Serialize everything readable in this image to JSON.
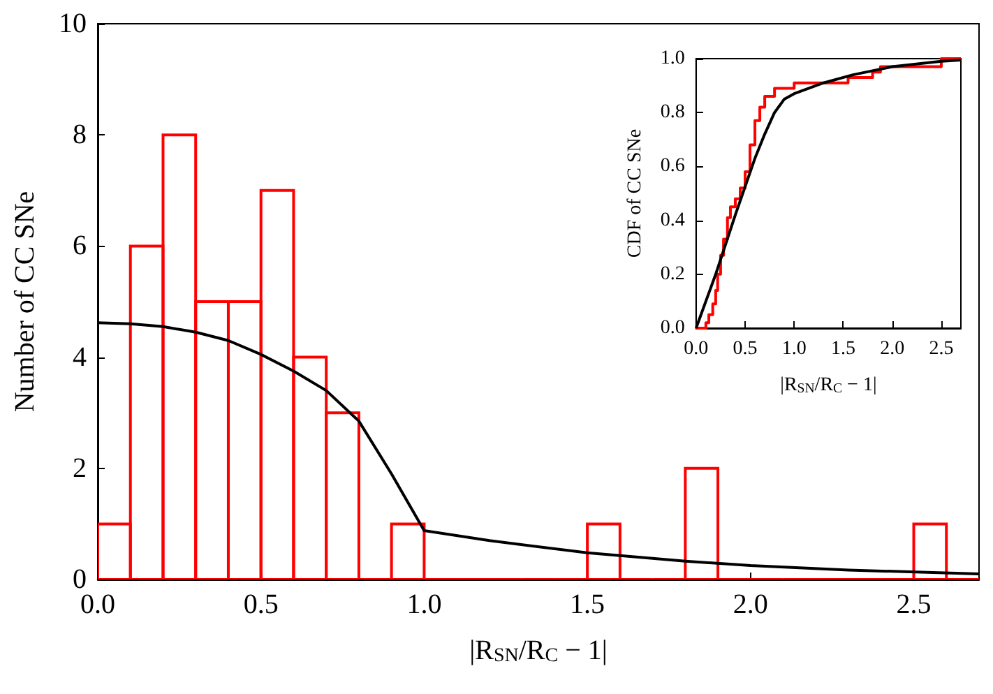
{
  "chart_data": [
    {
      "type": "histogram",
      "xlabel": "|R$_{SN}$/R$_{C}$ − 1|",
      "ylabel": "Number of CC SNe",
      "xlim": [
        0,
        2.7
      ],
      "ylim": [
        0,
        10
      ],
      "xticks": [
        {
          "value": 0,
          "label": "0.0"
        },
        {
          "value": 0.5,
          "label": "0.5"
        },
        {
          "value": 1,
          "label": "1.0"
        },
        {
          "value": 1.5,
          "label": "1.5"
        },
        {
          "value": 2,
          "label": "2.0"
        },
        {
          "value": 2.5,
          "label": "2.5"
        }
      ],
      "yticks": [
        0,
        2,
        4,
        6,
        8,
        10
      ],
      "grid": false,
      "series": [
        {
          "color": "#ff0000",
          "bins": [
            0,
            0.1,
            0.2,
            0.3,
            0.4,
            0.5,
            0.6,
            0.7,
            0.8,
            0.9,
            1.0,
            1.1,
            1.2,
            1.3,
            1.4,
            1.5,
            1.6,
            1.7,
            1.8,
            1.9,
            2.0,
            2.1,
            2.2,
            2.3,
            2.4,
            2.5,
            2.6,
            2.7
          ],
          "values": [
            1,
            6,
            8,
            5,
            5,
            7,
            4,
            3,
            0,
            1,
            0,
            0,
            0,
            0,
            0,
            1,
            0,
            0,
            2,
            0,
            0,
            0,
            0,
            0,
            0,
            1,
            0
          ]
        },
        {
          "type": "line",
          "color": "#000000",
          "x": [
            0,
            0.1,
            0.2,
            0.3,
            0.4,
            0.5,
            0.6,
            0.7,
            0.8,
            0.9,
            1.0,
            1.2,
            1.5,
            1.8,
            2.0,
            2.3,
            2.7
          ],
          "values": [
            4.62,
            4.6,
            4.55,
            4.45,
            4.3,
            4.05,
            3.75,
            3.4,
            2.85,
            1.9,
            0.88,
            0.7,
            0.48,
            0.33,
            0.25,
            0.17,
            0.1
          ]
        }
      ]
    },
    {
      "type": "step",
      "xlabel": "|R$_{SN}$/R$_{C}$ − 1|",
      "ylabel": "CDF of CC SNe",
      "xlim": [
        0,
        2.7
      ],
      "ylim": [
        0,
        1
      ],
      "xticks": [
        {
          "value": 0,
          "label": "0.0"
        },
        {
          "value": 0.5,
          "label": "0.5"
        },
        {
          "value": 1,
          "label": "1.0"
        },
        {
          "value": 1.5,
          "label": "1.5"
        },
        {
          "value": 2,
          "label": "2.0"
        },
        {
          "value": 2.5,
          "label": "2.5"
        }
      ],
      "yticks": [
        {
          "value": 0,
          "label": "0.0"
        },
        {
          "value": 0.2,
          "label": "0.2"
        },
        {
          "value": 0.4,
          "label": "0.4"
        },
        {
          "value": 0.6,
          "label": "0.6"
        },
        {
          "value": 0.8,
          "label": "0.8"
        },
        {
          "value": 1,
          "label": "1.0"
        }
      ],
      "grid": false,
      "series": [
        {
          "color": "#ff0000",
          "x": [
            0,
            0.1,
            0.13,
            0.17,
            0.2,
            0.22,
            0.25,
            0.28,
            0.32,
            0.35,
            0.4,
            0.45,
            0.5,
            0.55,
            0.6,
            0.65,
            0.7,
            0.8,
            1.0,
            1.55,
            1.8,
            1.88,
            2.5,
            2.7
          ],
          "values": [
            0,
            0.02,
            0.05,
            0.09,
            0.14,
            0.2,
            0.27,
            0.33,
            0.41,
            0.45,
            0.48,
            0.52,
            0.58,
            0.68,
            0.77,
            0.82,
            0.86,
            0.89,
            0.91,
            0.93,
            0.95,
            0.97,
            1.0,
            1.0
          ]
        },
        {
          "type": "line",
          "color": "#000000",
          "x": [
            0,
            0.2,
            0.4,
            0.6,
            0.7,
            0.8,
            0.9,
            1.0,
            1.3,
            1.6,
            2.0,
            2.5,
            2.7
          ],
          "values": [
            0,
            0.2,
            0.42,
            0.63,
            0.72,
            0.8,
            0.85,
            0.87,
            0.91,
            0.94,
            0.97,
            0.99,
            0.995
          ]
        }
      ]
    }
  ]
}
